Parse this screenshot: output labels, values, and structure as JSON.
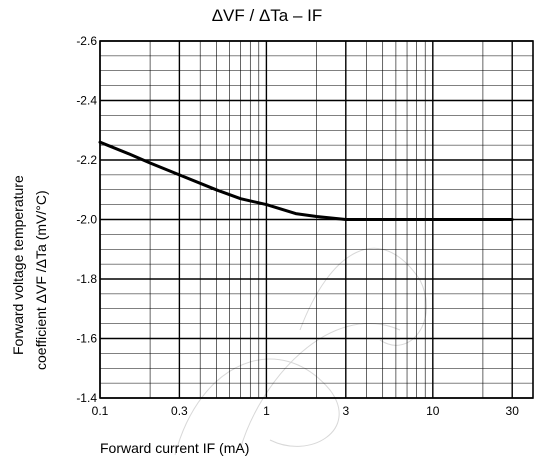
{
  "chart_data": {
    "type": "line",
    "title": "ΔVF / ΔTa – IF",
    "xlabel": "Forward current   IF   (mA)",
    "ylabel_line1": "Forward voltage temperature",
    "ylabel_line2": "coefficient   ΔVF /ΔTa   (mV/°C)",
    "x_scale": "log",
    "xlim": [
      0.1,
      40
    ],
    "ylim": [
      -1.4,
      -2.6
    ],
    "y_reversed": true,
    "x_ticks": [
      "0.1",
      "0.3",
      "1",
      "3",
      "10",
      "30"
    ],
    "x_tick_values": [
      0.1,
      0.3,
      1,
      3,
      10,
      30
    ],
    "y_ticks": [
      "-2.6",
      "-2.4",
      "-2.2",
      "-2.0",
      "-1.8",
      "-1.6",
      "-1.4"
    ],
    "y_tick_values": [
      -2.6,
      -2.4,
      -2.2,
      -2.0,
      -1.8,
      -1.6,
      -1.4
    ],
    "grid": true,
    "series": [
      {
        "x": [
          0.1,
          0.15,
          0.2,
          0.3,
          0.5,
          0.7,
          1,
          1.5,
          2,
          3,
          5,
          10,
          20,
          30
        ],
        "y": [
          -2.26,
          -2.22,
          -2.19,
          -2.15,
          -2.1,
          -2.07,
          -2.05,
          -2.02,
          -2.01,
          -2.0,
          -2.0,
          -2.0,
          -2.0,
          -2.0
        ]
      }
    ]
  }
}
